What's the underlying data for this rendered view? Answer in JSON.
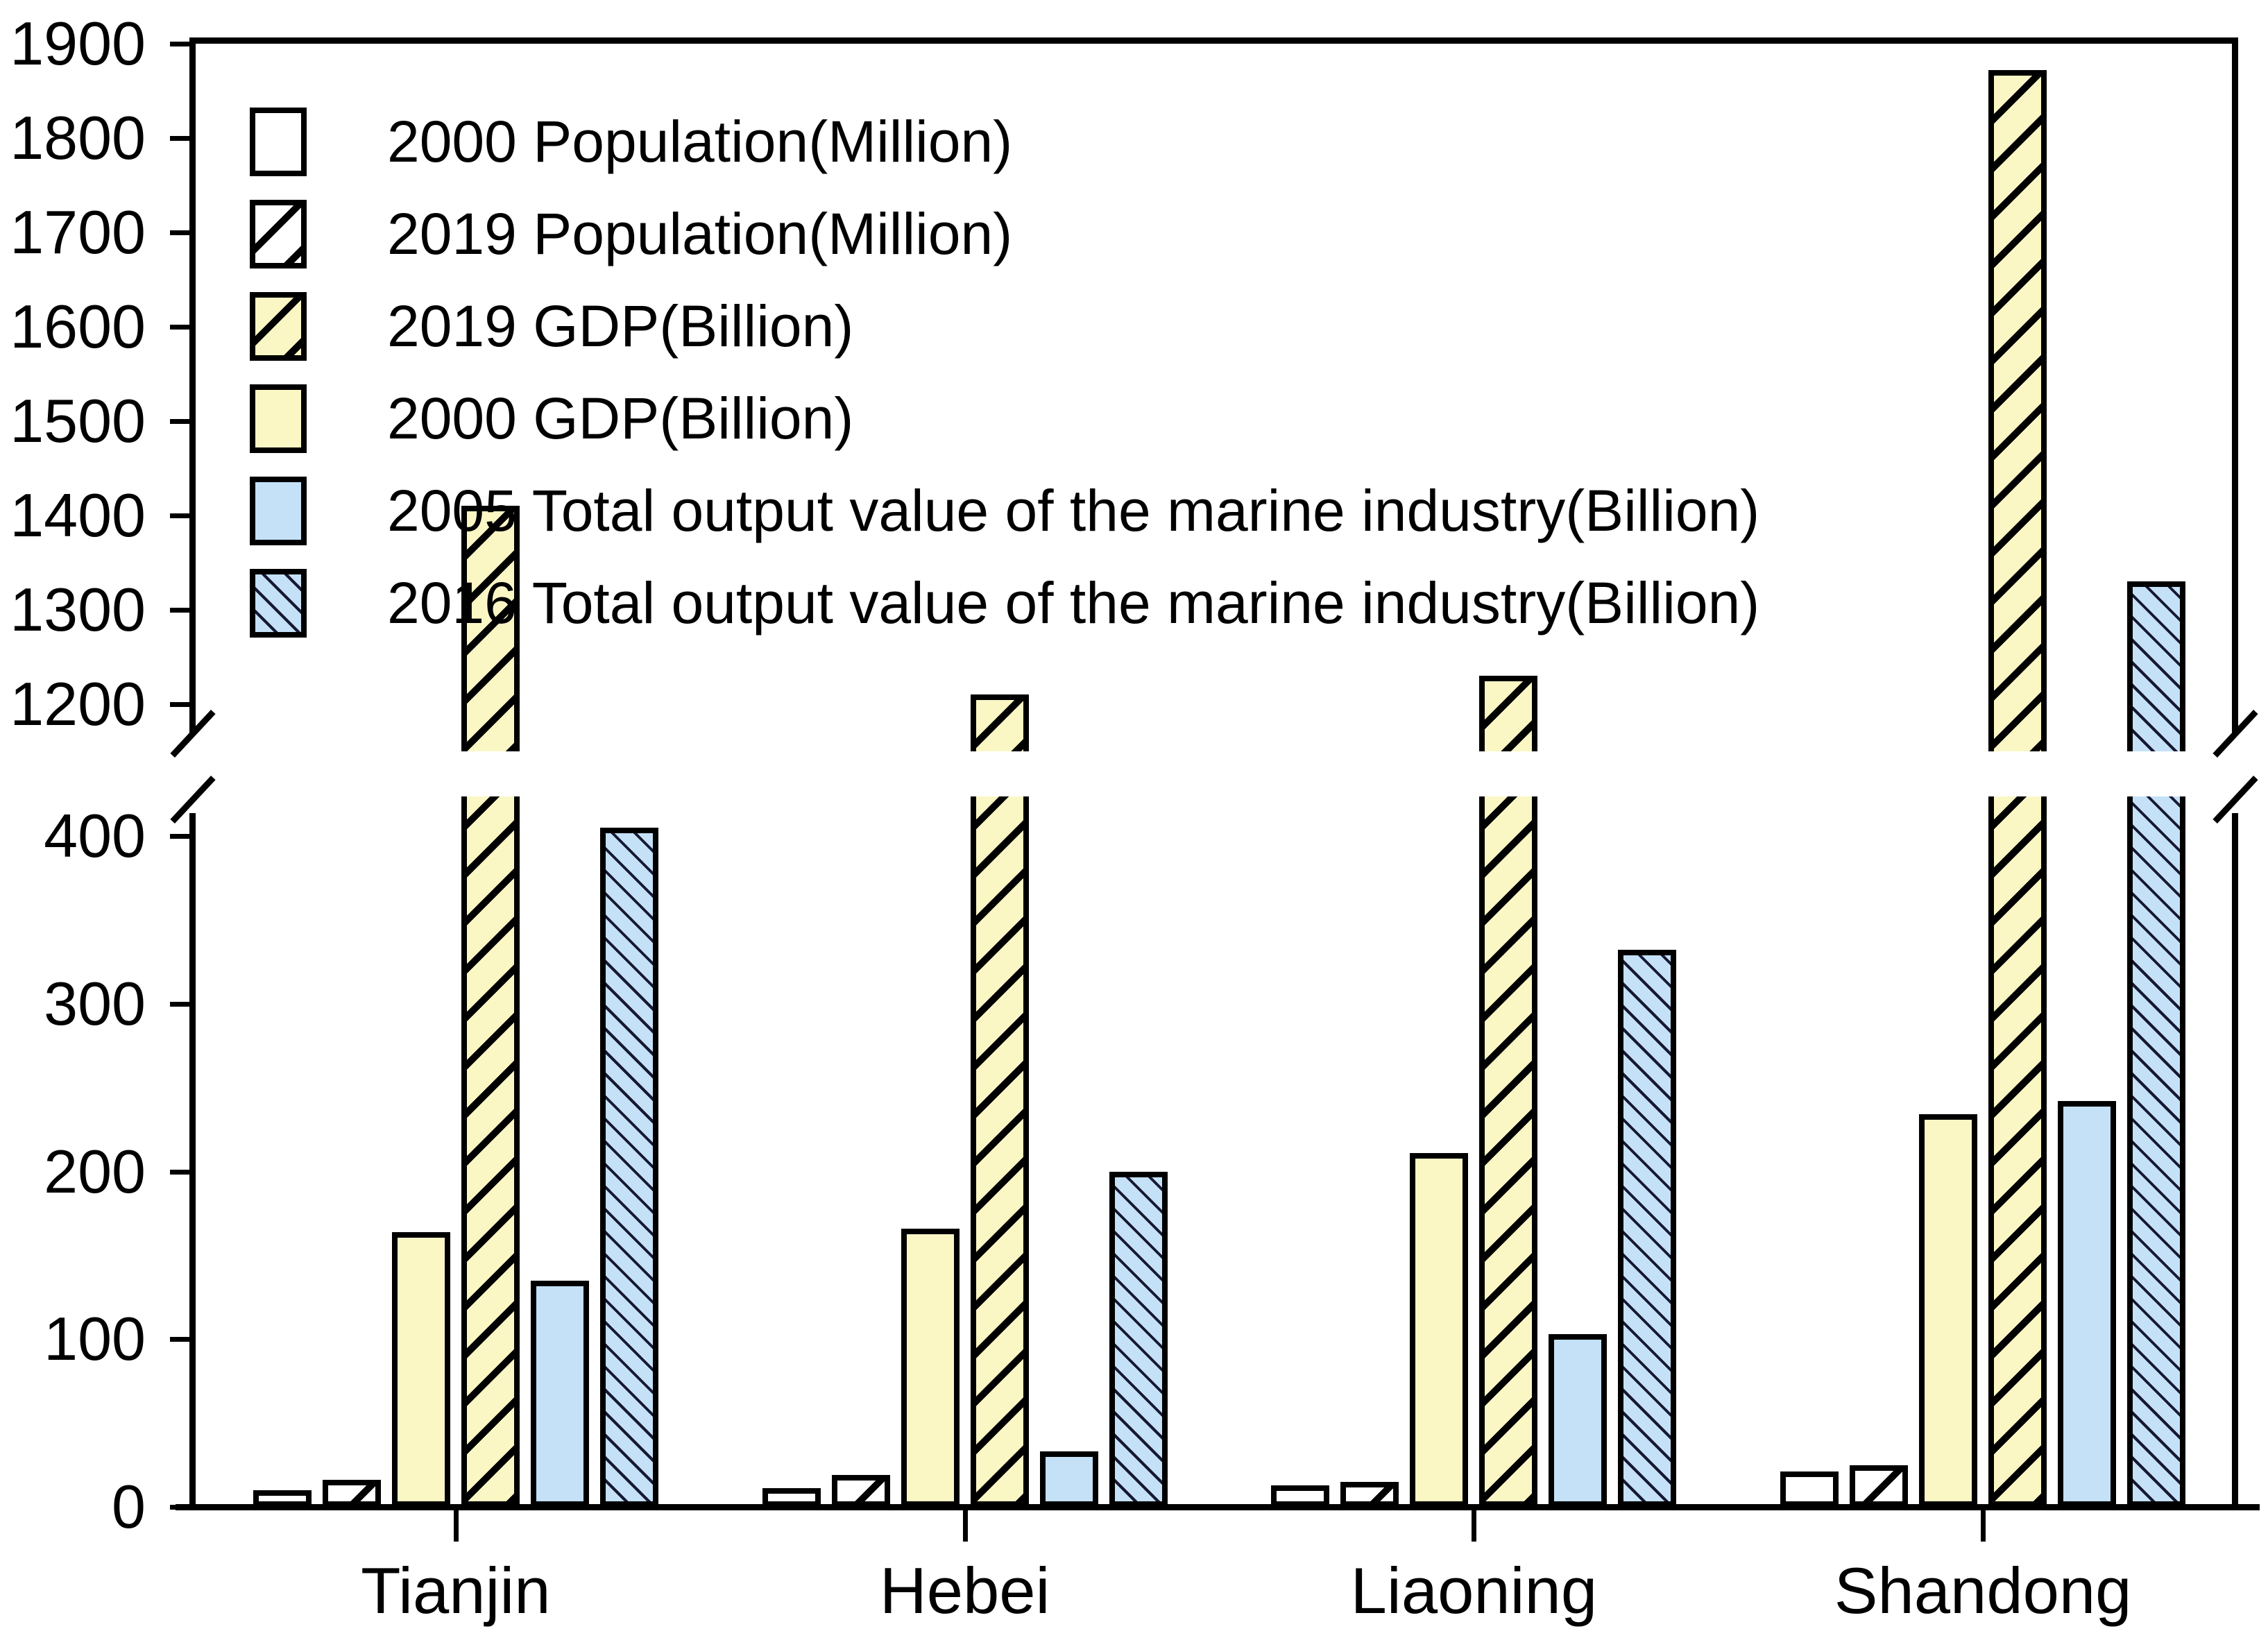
{
  "chart_data": {
    "type": "bar",
    "title": "",
    "categories": [
      "Tianjin",
      "Hebei",
      "Liaoning",
      "Shandong"
    ],
    "series": [
      {
        "name": "2000 Population(Million)",
        "fill": "white",
        "hatch": "none",
        "values": [
          10,
          11,
          13,
          21
        ]
      },
      {
        "name": "2019 Population(Million)",
        "fill": "white",
        "hatch": "forward",
        "values": [
          16,
          19,
          15,
          25
        ]
      },
      {
        "name": "2000 GDP(Billion)",
        "fill": "yellow",
        "hatch": "none",
        "values": [
          164,
          166,
          211,
          234
        ]
      },
      {
        "name": "2019 GDP(Billion)",
        "fill": "yellow",
        "hatch": "forward",
        "values": [
          1410,
          1210,
          1230,
          1872
        ]
      },
      {
        "name": "2005 Total output value of the marine industry(Billion)",
        "fill": "blue",
        "hatch": "none",
        "values": [
          135,
          33,
          103,
          242
        ]
      },
      {
        "name": "2016 Total output value of the marine industry(Billion)",
        "fill": "blue",
        "hatch": "backward",
        "values": [
          405,
          200,
          332,
          1330
        ]
      }
    ],
    "legend": [
      {
        "label": "2000 Population(Million)",
        "fill": "white",
        "hatch": "none"
      },
      {
        "label": "2019 Population(Million)",
        "fill": "white",
        "hatch": "forward"
      },
      {
        "label": "2019 GDP(Billion)",
        "fill": "yellow",
        "hatch": "forward"
      },
      {
        "label": "2000 GDP(Billion)",
        "fill": "yellow",
        "hatch": "none"
      },
      {
        "label": "2005 Total output value of the marine industry(Billion)",
        "fill": "blue",
        "hatch": "none"
      },
      {
        "label": "2016 Total output value of the marine industry(Billion)",
        "fill": "blue",
        "hatch": "backward"
      }
    ],
    "legend_position": "top-left",
    "grid": false,
    "colors": {
      "white": "#FFFFFF",
      "yellow": "#FBF7C5",
      "blue": "#C4E1F8",
      "stroke": "#000000"
    },
    "y_axis": {
      "broken": true,
      "upper": {
        "min": 1150,
        "max": 1900,
        "ticks": [
          1900,
          1800,
          1700,
          1600,
          1500,
          1400,
          1300,
          1200
        ]
      },
      "lower": {
        "min": 0,
        "max": 423,
        "ticks": [
          400,
          300,
          200,
          100,
          0
        ]
      }
    },
    "x_axis": {
      "tick_labels": [
        "Tianjin",
        "Hebei",
        "Liaoning",
        "Shandong"
      ]
    }
  }
}
